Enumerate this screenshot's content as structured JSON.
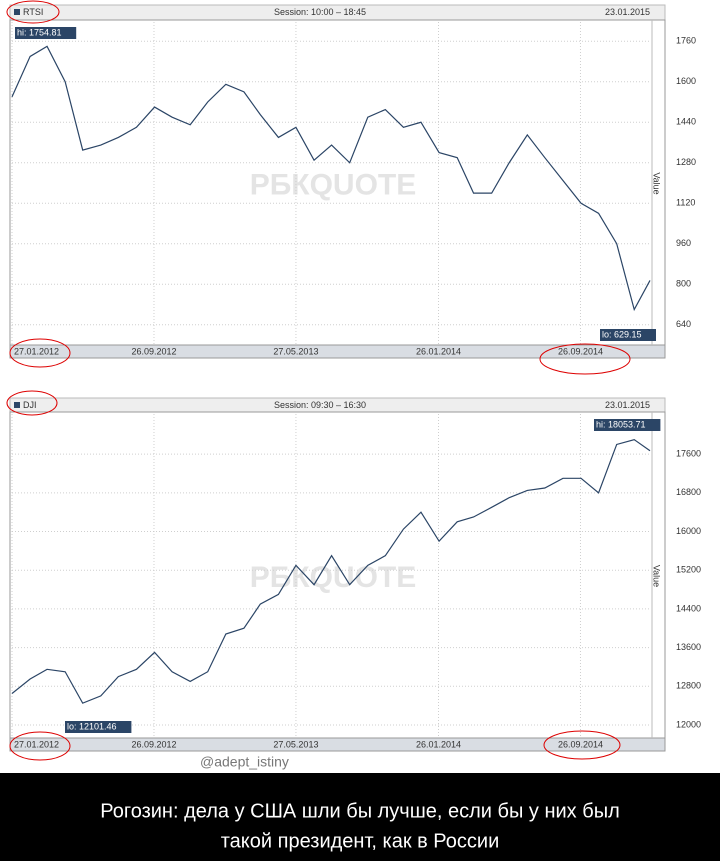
{
  "chart_data": [
    {
      "type": "line",
      "subtitle": "Session: 10:00 – 18:45",
      "date": "23.01.2015",
      "ylabel": "Value",
      "watermark": "РБКQUOTE",
      "annotations": [
        "hi: 1754.81",
        "lo: 629.15"
      ],
      "x": [
        "27.01.2012",
        "27.02.2012",
        "27.03.2012",
        "27.04.2012",
        "27.05.2012",
        "27.06.2012",
        "27.07.2012",
        "27.08.2012",
        "27.09.2012",
        "27.10.2012",
        "27.11.2012",
        "27.12.2012",
        "27.01.2013",
        "27.02.2013",
        "27.03.2013",
        "27.04.2013",
        "27.05.2013",
        "27.06.2013",
        "27.07.2013",
        "27.08.2013",
        "27.09.2013",
        "27.10.2013",
        "27.11.2013",
        "27.12.2013",
        "27.01.2014",
        "27.02.2014",
        "27.03.2014",
        "27.04.2014",
        "27.05.2014",
        "27.06.2014",
        "27.07.2014",
        "27.08.2014",
        "27.09.2014",
        "27.10.2014",
        "27.11.2014",
        "27.12.2014",
        "23.01.2015"
      ],
      "series": [
        {
          "name": "RTSI",
          "color": "#2b4566",
          "values": [
            1540,
            1700,
            1740,
            1600,
            1330,
            1350,
            1380,
            1420,
            1500,
            1460,
            1430,
            1520,
            1590,
            1560,
            1470,
            1380,
            1420,
            1290,
            1350,
            1280,
            1460,
            1490,
            1420,
            1440,
            1320,
            1300,
            1160,
            1160,
            1280,
            1390,
            1300,
            1210,
            1120,
            1080,
            960,
            700,
            815
          ]
        }
      ],
      "xlim": [
        "27.01.2012",
        "23.01.2015"
      ],
      "ylim": [
        560,
        1836
      ],
      "xticks": [
        "27.01.2012",
        "26.09.2012",
        "27.05.2013",
        "26.01.2014",
        "26.09.2014"
      ],
      "yticks": [
        640,
        800,
        960,
        1120,
        1280,
        1440,
        1600,
        1760
      ],
      "grid": true
    },
    {
      "type": "line",
      "subtitle": "Session: 09:30 – 16:30",
      "date": "23.01.2015",
      "ylabel": "Value",
      "watermark": "РБКQUOTE",
      "annotations": [
        "hi: 18053.71",
        "lo: 12101.46"
      ],
      "x": [
        "27.01.2012",
        "27.02.2012",
        "27.03.2012",
        "27.04.2012",
        "27.05.2012",
        "27.06.2012",
        "27.07.2012",
        "27.08.2012",
        "27.09.2012",
        "27.10.2012",
        "27.11.2012",
        "27.12.2012",
        "27.01.2013",
        "27.02.2013",
        "27.03.2013",
        "27.04.2013",
        "27.05.2013",
        "27.06.2013",
        "27.07.2013",
        "27.08.2013",
        "27.09.2013",
        "27.10.2013",
        "27.11.2013",
        "27.12.2013",
        "27.01.2014",
        "27.02.2014",
        "27.03.2014",
        "27.04.2014",
        "27.05.2014",
        "27.06.2014",
        "27.07.2014",
        "27.08.2014",
        "27.09.2014",
        "27.10.2014",
        "27.11.2014",
        "27.12.2014",
        "23.01.2015"
      ],
      "series": [
        {
          "name": "DJI",
          "color": "#2b4566",
          "values": [
            12650,
            12950,
            13150,
            13100,
            12450,
            12600,
            13000,
            13150,
            13500,
            13100,
            12900,
            13100,
            13880,
            14000,
            14500,
            14700,
            15300,
            14900,
            15500,
            14900,
            15300,
            15500,
            16050,
            16400,
            15800,
            16200,
            16300,
            16500,
            16700,
            16850,
            16900,
            17100,
            17100,
            16800,
            17800,
            17900,
            17670
          ]
        }
      ],
      "xlim": [
        "27.01.2012",
        "23.01.2015"
      ],
      "ylim": [
        11730,
        18430
      ],
      "xticks": [
        "27.01.2012",
        "26.09.2012",
        "27.05.2013",
        "26.01.2014",
        "26.09.2014"
      ],
      "yticks": [
        12000,
        12800,
        13600,
        14400,
        15200,
        16000,
        16800,
        17600
      ],
      "grid": true
    }
  ],
  "handle": "@adept_istiny",
  "caption": [
    "Рогозин: дела у США шли бы лучше, если бы у них был",
    "такой президент, как в России"
  ]
}
